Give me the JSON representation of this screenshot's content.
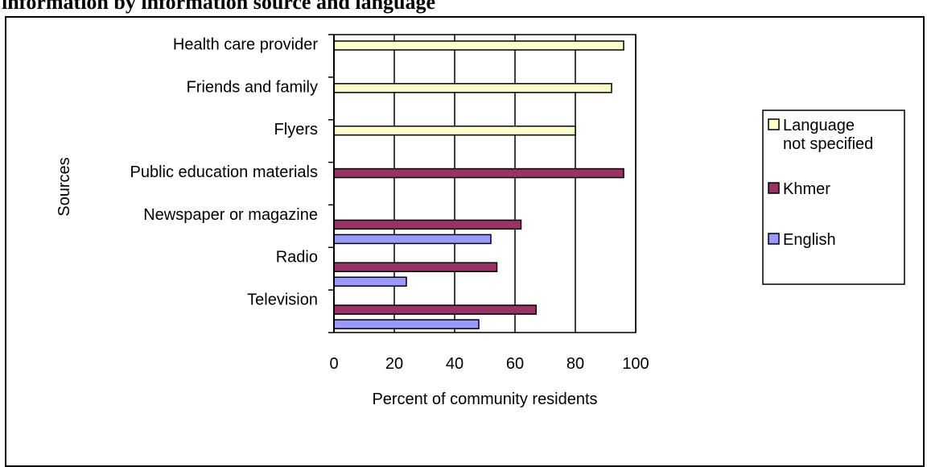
{
  "title": "information by information source and language",
  "chart_data": {
    "type": "bar",
    "orientation": "horizontal",
    "title": "information by information source and language",
    "xlabel": "Percent of community residents",
    "ylabel": "Sources",
    "xlim": [
      0,
      100
    ],
    "x_ticks": [
      0,
      20,
      40,
      60,
      80,
      100
    ],
    "grid": true,
    "legend_position": "right",
    "categories": [
      "Health care provider",
      "Friends and family",
      "Flyers",
      "Public education materials",
      "Newspaper or magazine",
      "Radio",
      "Television"
    ],
    "series": [
      {
        "name": "Language not specified",
        "color": "#FFFFCC",
        "values": [
          96,
          92,
          80,
          null,
          null,
          null,
          null
        ]
      },
      {
        "name": "Khmer",
        "color": "#993366",
        "values": [
          null,
          null,
          null,
          96,
          62,
          54,
          67
        ]
      },
      {
        "name": "English",
        "color": "#9999FF",
        "values": [
          null,
          null,
          null,
          null,
          52,
          24,
          48
        ]
      }
    ]
  }
}
